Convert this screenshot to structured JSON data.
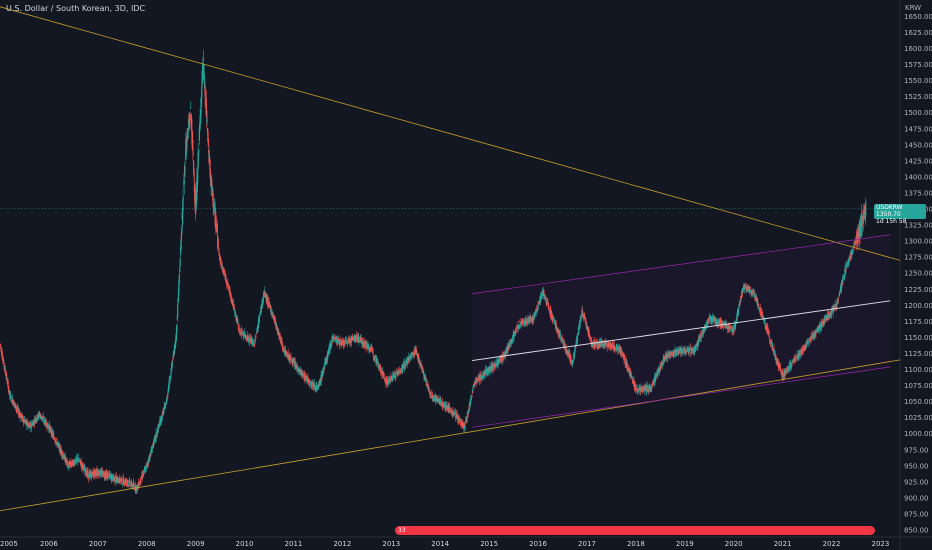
{
  "header": {
    "title": "U.S. Dollar / South Korean, 3D, IDC",
    "unit": "KRW"
  },
  "price_badge": {
    "symbol": "USDKRW",
    "price": "1350.70",
    "countdown": "1d 15h 58"
  },
  "events": {
    "count": "33"
  },
  "colors": {
    "background": "#131722",
    "up": "#26a69a",
    "down": "#ef5350",
    "trendline": "#c9a227",
    "channel": "#9c27b0",
    "midline": "#e0e3eb",
    "events": "#f23645"
  },
  "chart_data": {
    "type": "candlestick",
    "x_ticks": [
      "2005",
      "2006",
      "2007",
      "2008",
      "2009",
      "2010",
      "2011",
      "2012",
      "2013",
      "2014",
      "2015",
      "2016",
      "2017",
      "2018",
      "2019",
      "2020",
      "2021",
      "2022",
      "2023"
    ],
    "y_ticks": [
      "850.00",
      "875.00",
      "900.00",
      "925.00",
      "950.00",
      "975.00",
      "1000.00",
      "1025.00",
      "1050.00",
      "1075.00",
      "1100.00",
      "1125.00",
      "1150.00",
      "1175.00",
      "1200.00",
      "1225.00",
      "1250.00",
      "1275.00",
      "1300.00",
      "1325.00",
      "1350.00",
      "1375.00",
      "1400.00",
      "1425.00",
      "1450.00",
      "1475.00",
      "1500.00",
      "1525.00",
      "1550.00",
      "1575.00",
      "1600.00",
      "1625.00",
      "1650.00"
    ],
    "ylim": [
      850,
      1660
    ],
    "xlim": [
      2005.0,
      2023.4
    ],
    "grid": false,
    "series": [
      {
        "points": [
          [
            2005.0,
            1140
          ],
          [
            2005.2,
            1060
          ],
          [
            2005.4,
            1030
          ],
          [
            2005.6,
            1010
          ],
          [
            2005.8,
            1030
          ],
          [
            2006.0,
            1010
          ],
          [
            2006.2,
            980
          ],
          [
            2006.4,
            950
          ],
          [
            2006.6,
            960
          ],
          [
            2006.8,
            935
          ],
          [
            2007.0,
            940
          ],
          [
            2007.2,
            935
          ],
          [
            2007.4,
            928
          ],
          [
            2007.6,
            925
          ],
          [
            2007.8,
            915
          ],
          [
            2008.0,
            950
          ],
          [
            2008.2,
            1000
          ],
          [
            2008.4,
            1050
          ],
          [
            2008.6,
            1150
          ],
          [
            2008.8,
            1450
          ],
          [
            2008.9,
            1500
          ],
          [
            2009.0,
            1350
          ],
          [
            2009.15,
            1580
          ],
          [
            2009.3,
            1400
          ],
          [
            2009.5,
            1270
          ],
          [
            2009.7,
            1220
          ],
          [
            2009.9,
            1160
          ],
          [
            2010.2,
            1140
          ],
          [
            2010.4,
            1220
          ],
          [
            2010.6,
            1180
          ],
          [
            2010.8,
            1130
          ],
          [
            2011.0,
            1110
          ],
          [
            2011.2,
            1090
          ],
          [
            2011.5,
            1070
          ],
          [
            2011.8,
            1150
          ],
          [
            2012.0,
            1140
          ],
          [
            2012.3,
            1150
          ],
          [
            2012.6,
            1130
          ],
          [
            2012.9,
            1080
          ],
          [
            2013.2,
            1100
          ],
          [
            2013.5,
            1130
          ],
          [
            2013.8,
            1060
          ],
          [
            2014.0,
            1050
          ],
          [
            2014.3,
            1030
          ],
          [
            2014.5,
            1010
          ],
          [
            2014.7,
            1080
          ],
          [
            2015.0,
            1100
          ],
          [
            2015.3,
            1120
          ],
          [
            2015.6,
            1170
          ],
          [
            2015.9,
            1180
          ],
          [
            2016.1,
            1220
          ],
          [
            2016.4,
            1160
          ],
          [
            2016.7,
            1110
          ],
          [
            2016.9,
            1190
          ],
          [
            2017.1,
            1140
          ],
          [
            2017.4,
            1140
          ],
          [
            2017.7,
            1130
          ],
          [
            2018.0,
            1070
          ],
          [
            2018.3,
            1070
          ],
          [
            2018.6,
            1120
          ],
          [
            2018.9,
            1130
          ],
          [
            2019.2,
            1130
          ],
          [
            2019.5,
            1180
          ],
          [
            2019.8,
            1170
          ],
          [
            2020.0,
            1160
          ],
          [
            2020.2,
            1230
          ],
          [
            2020.4,
            1220
          ],
          [
            2020.6,
            1180
          ],
          [
            2020.9,
            1110
          ],
          [
            2021.0,
            1090
          ],
          [
            2021.3,
            1120
          ],
          [
            2021.6,
            1150
          ],
          [
            2021.9,
            1180
          ],
          [
            2022.1,
            1200
          ],
          [
            2022.3,
            1260
          ],
          [
            2022.5,
            1300
          ],
          [
            2022.7,
            1350
          ]
        ]
      }
    ],
    "lines": [
      {
        "name": "descending trendline",
        "from": [
          2005.0,
          1665
        ],
        "to": [
          2023.4,
          1270
        ]
      },
      {
        "name": "ascending trendline",
        "from": [
          2005.0,
          880
        ],
        "to": [
          2023.4,
          1115
        ]
      },
      {
        "name": "channel upper",
        "from": [
          2014.65,
          1218
        ],
        "to": [
          2023.2,
          1310
        ]
      },
      {
        "name": "channel middle",
        "from": [
          2014.65,
          1114
        ],
        "to": [
          2023.2,
          1207
        ]
      },
      {
        "name": "channel lower",
        "from": [
          2014.65,
          1010
        ],
        "to": [
          2023.2,
          1104
        ]
      }
    ],
    "current_price": 1350.7
  }
}
